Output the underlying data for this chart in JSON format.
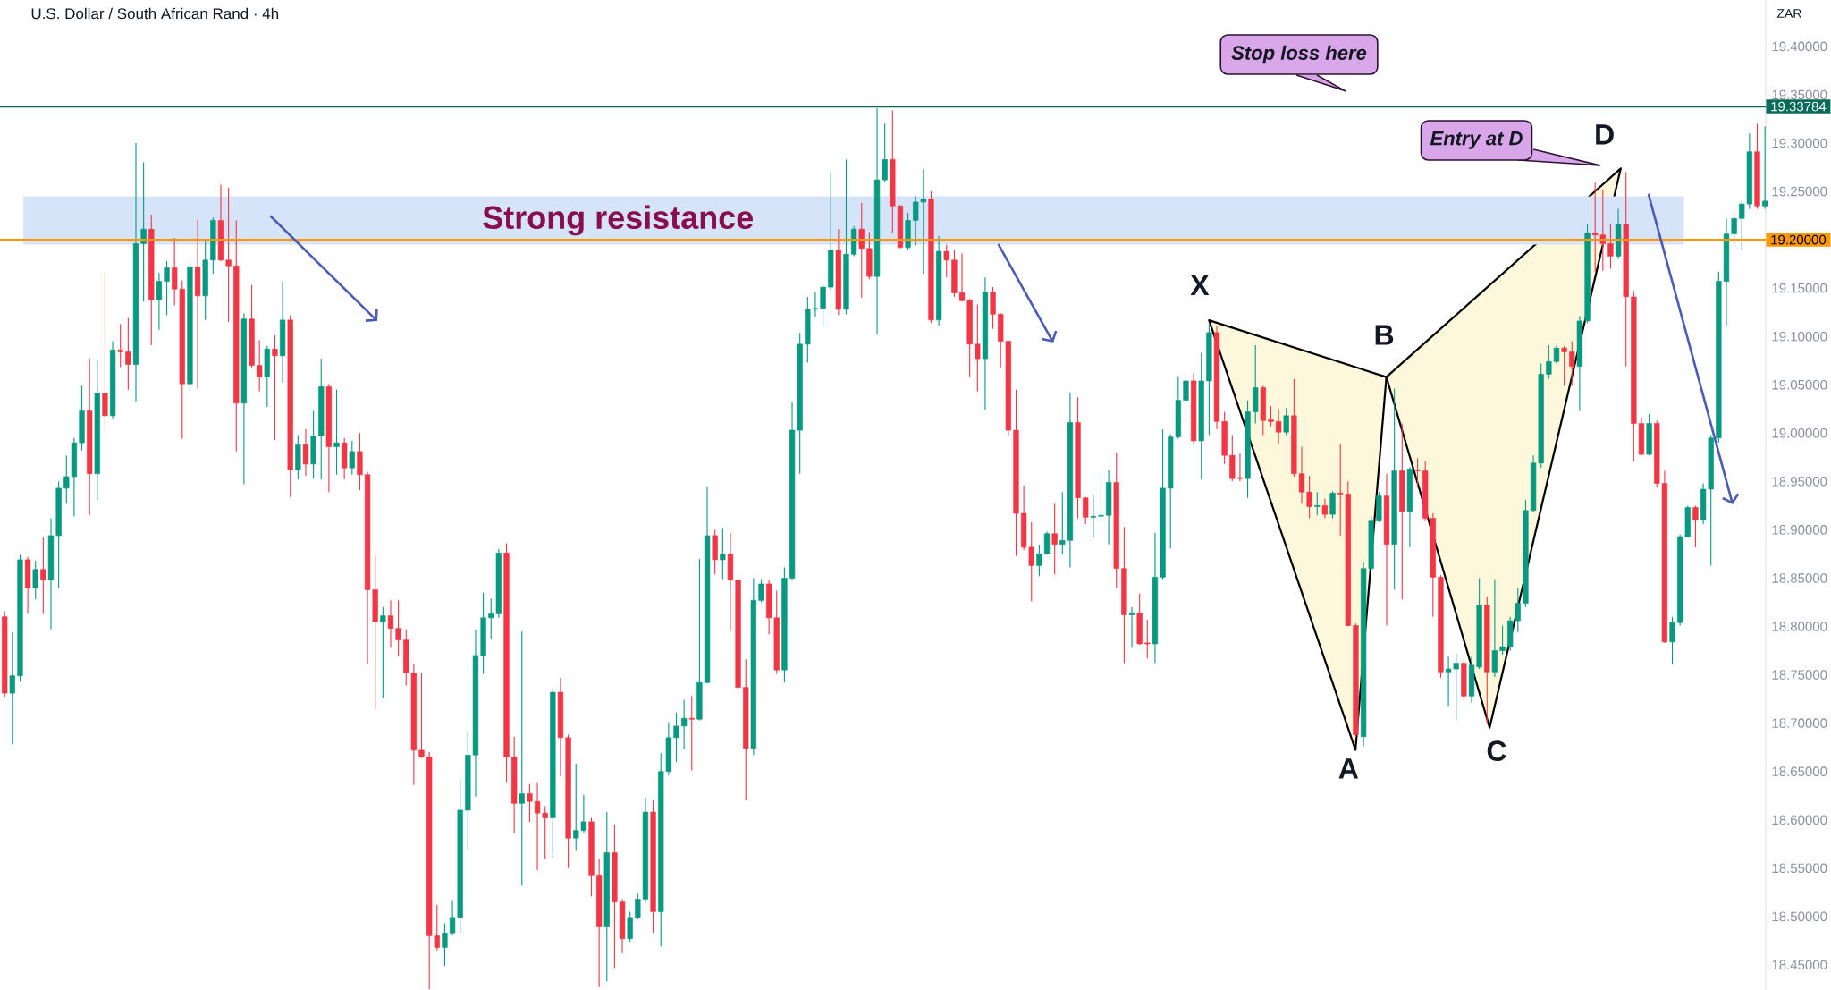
{
  "chart_data": {
    "type": "candlestick",
    "title": "U.S. Dollar / South African Rand · 4h",
    "ylabel": "ZAR",
    "categories": [
      null,
      null,
      null,
      null,
      null,
      null,
      null,
      null,
      null,
      null,
      null,
      null,
      null,
      null,
      null,
      null,
      null,
      null,
      null,
      null,
      null,
      null,
      null,
      null,
      null,
      null,
      null,
      null,
      null,
      null,
      null,
      null,
      null,
      null,
      null,
      null,
      null,
      null,
      null,
      null,
      null,
      null,
      null,
      null,
      null,
      null,
      null,
      null,
      null,
      null,
      null,
      null,
      null,
      null,
      null,
      null,
      null,
      null,
      null,
      null,
      null,
      null,
      null,
      null,
      null,
      null,
      null,
      null,
      null,
      null,
      null,
      null,
      null,
      null,
      null,
      null,
      null,
      null,
      null,
      null,
      null,
      null,
      null,
      null,
      null,
      null,
      null,
      null,
      null,
      null,
      null,
      null,
      null,
      null,
      null,
      null,
      null,
      null,
      null,
      null,
      null,
      null,
      null,
      null,
      null,
      null,
      null,
      null,
      null,
      null,
      null,
      null,
      null,
      null,
      null,
      null,
      null,
      null,
      null,
      null,
      null,
      null,
      null,
      null,
      null,
      null,
      null,
      null,
      null,
      null,
      null,
      null,
      null,
      null,
      null,
      null,
      null,
      null,
      null,
      null,
      null,
      null,
      null,
      null,
      null,
      null,
      null,
      null,
      null,
      null,
      null,
      null,
      null,
      null,
      null,
      null,
      null,
      null,
      null,
      null,
      null,
      null,
      null,
      null,
      null,
      null,
      null,
      null,
      null,
      null,
      null,
      null,
      null,
      null,
      null,
      null,
      null,
      null,
      null,
      null,
      null,
      null,
      null,
      null,
      null,
      null,
      null,
      null,
      null,
      null,
      null,
      null,
      null,
      null,
      null,
      null,
      null,
      null,
      null,
      null,
      null,
      null,
      null,
      null,
      null,
      null,
      null,
      null,
      null,
      null,
      null,
      null,
      null,
      null,
      null,
      null,
      null,
      null,
      null,
      null,
      null,
      null,
      null,
      null,
      null,
      null,
      null,
      null,
      null
    ],
    "ohlc": [
      [
        18.81,
        18.816,
        18.727,
        18.731
      ],
      [
        18.731,
        18.794,
        18.678,
        18.749
      ],
      [
        18.749,
        18.874,
        18.743,
        18.869
      ],
      [
        18.869,
        18.872,
        18.813,
        18.84
      ],
      [
        18.84,
        18.868,
        18.828,
        18.859
      ],
      [
        18.859,
        18.892,
        18.813,
        18.848
      ],
      [
        18.848,
        18.912,
        18.797,
        18.894
      ],
      [
        18.894,
        18.95,
        18.84,
        18.943
      ],
      [
        18.943,
        18.977,
        18.927,
        18.955
      ],
      [
        18.955,
        18.995,
        18.914,
        18.99
      ],
      [
        18.99,
        19.049,
        18.982,
        19.023
      ],
      [
        19.023,
        19.077,
        18.915,
        18.958
      ],
      [
        18.958,
        19.076,
        18.931,
        19.041
      ],
      [
        19.041,
        19.166,
        19.003,
        19.018
      ],
      [
        19.018,
        19.095,
        19.015,
        19.086
      ],
      [
        19.086,
        19.113,
        19.068,
        19.084
      ],
      [
        19.084,
        19.119,
        19.045,
        19.071
      ],
      [
        19.071,
        19.3,
        19.033,
        19.196
      ],
      [
        19.196,
        19.28,
        19.136,
        19.211
      ],
      [
        19.211,
        19.226,
        19.091,
        19.138
      ],
      [
        19.138,
        19.166,
        19.107,
        19.157
      ],
      [
        19.157,
        19.178,
        19.122,
        19.171
      ],
      [
        19.171,
        19.202,
        19.132,
        19.149
      ],
      [
        19.149,
        19.158,
        18.994,
        19.051
      ],
      [
        19.051,
        19.178,
        19.043,
        19.172
      ],
      [
        19.172,
        19.221,
        19.046,
        19.142
      ],
      [
        19.142,
        19.2,
        19.117,
        19.179
      ],
      [
        19.179,
        19.223,
        19.165,
        19.22
      ],
      [
        19.22,
        19.257,
        19.178,
        19.179
      ],
      [
        19.179,
        19.254,
        19.115,
        19.173
      ],
      [
        19.173,
        19.22,
        18.981,
        19.031
      ],
      [
        19.031,
        19.124,
        18.947,
        19.118
      ],
      [
        19.118,
        19.153,
        19.068,
        19.07
      ],
      [
        19.07,
        19.096,
        19.043,
        19.058
      ],
      [
        19.058,
        19.09,
        19.027,
        19.087
      ],
      [
        19.087,
        19.101,
        18.993,
        19.08
      ],
      [
        19.08,
        19.157,
        19.052,
        19.117
      ],
      [
        19.117,
        19.122,
        18.934,
        18.962
      ],
      [
        18.962,
        18.998,
        18.952,
        18.988
      ],
      [
        18.988,
        19.004,
        18.956,
        18.968
      ],
      [
        18.968,
        19.023,
        18.953,
        18.997
      ],
      [
        18.997,
        19.077,
        18.952,
        19.048
      ],
      [
        19.048,
        19.051,
        18.939,
        18.986
      ],
      [
        18.986,
        19.045,
        18.957,
        18.99
      ],
      [
        18.99,
        18.995,
        18.952,
        18.964
      ],
      [
        18.964,
        18.992,
        18.957,
        18.981
      ],
      [
        18.981,
        19.0,
        18.941,
        18.957
      ],
      [
        18.957,
        18.96,
        18.761,
        18.838
      ],
      [
        18.838,
        18.873,
        18.715,
        18.805
      ],
      [
        18.805,
        18.82,
        18.726,
        18.811
      ],
      [
        18.811,
        18.827,
        18.778,
        18.798
      ],
      [
        18.798,
        18.827,
        18.769,
        18.786
      ],
      [
        18.786,
        18.797,
        18.739,
        18.752
      ],
      [
        18.752,
        18.761,
        18.636,
        18.672
      ],
      [
        18.672,
        18.752,
        18.664,
        18.665
      ],
      [
        18.665,
        18.67,
        18.425,
        18.48
      ],
      [
        18.48,
        18.512,
        18.465,
        18.468
      ],
      [
        18.468,
        18.493,
        18.449,
        18.483
      ],
      [
        18.483,
        18.517,
        18.481,
        18.499
      ],
      [
        18.499,
        18.642,
        18.483,
        18.61
      ],
      [
        18.61,
        18.692,
        18.569,
        18.667
      ],
      [
        18.667,
        18.797,
        18.624,
        18.77
      ],
      [
        18.77,
        18.835,
        18.751,
        18.809
      ],
      [
        18.809,
        18.829,
        18.787,
        18.813
      ],
      [
        18.813,
        18.88,
        18.809,
        18.876
      ],
      [
        18.876,
        18.886,
        18.639,
        18.665
      ],
      [
        18.665,
        18.686,
        18.586,
        18.617
      ],
      [
        18.617,
        18.795,
        18.532,
        18.627
      ],
      [
        18.627,
        18.637,
        18.598,
        18.619
      ],
      [
        18.619,
        18.639,
        18.548,
        18.607
      ],
      [
        18.607,
        18.614,
        18.56,
        18.602
      ],
      [
        18.602,
        18.736,
        18.561,
        18.732
      ],
      [
        18.732,
        18.747,
        18.645,
        18.685
      ],
      [
        18.685,
        18.688,
        18.55,
        18.581
      ],
      [
        18.581,
        18.658,
        18.568,
        18.589
      ],
      [
        18.589,
        18.626,
        18.587,
        18.598
      ],
      [
        18.598,
        18.602,
        18.521,
        18.543
      ],
      [
        18.543,
        18.56,
        18.427,
        18.49
      ],
      [
        18.49,
        18.608,
        18.433,
        18.566
      ],
      [
        18.566,
        18.595,
        18.447,
        18.515
      ],
      [
        18.515,
        18.518,
        18.462,
        18.477
      ],
      [
        18.477,
        18.505,
        18.474,
        18.499
      ],
      [
        18.499,
        18.524,
        18.497,
        18.518
      ],
      [
        18.518,
        18.623,
        18.515,
        18.608
      ],
      [
        18.608,
        18.621,
        18.483,
        18.505
      ],
      [
        18.505,
        18.669,
        18.469,
        18.65
      ],
      [
        18.65,
        18.701,
        18.646,
        18.685
      ],
      [
        18.685,
        18.711,
        18.66,
        18.697
      ],
      [
        18.697,
        18.724,
        18.673,
        18.705
      ],
      [
        18.705,
        18.728,
        18.651,
        18.704
      ],
      [
        18.704,
        18.87,
        18.703,
        18.742
      ],
      [
        18.742,
        18.945,
        18.741,
        18.894
      ],
      [
        18.894,
        18.9,
        18.854,
        18.869
      ],
      [
        18.869,
        18.902,
        18.849,
        18.875
      ],
      [
        18.875,
        18.897,
        18.795,
        18.848
      ],
      [
        18.848,
        18.85,
        18.735,
        18.737
      ],
      [
        18.737,
        18.766,
        18.62,
        18.674
      ],
      [
        18.674,
        18.85,
        18.667,
        18.827
      ],
      [
        18.827,
        18.849,
        18.825,
        18.844
      ],
      [
        18.844,
        18.848,
        18.792,
        18.809
      ],
      [
        18.809,
        18.837,
        18.751,
        18.755
      ],
      [
        18.755,
        18.861,
        18.742,
        18.85
      ],
      [
        18.85,
        19.032,
        18.848,
        19.003
      ],
      [
        19.003,
        19.104,
        18.958,
        19.092
      ],
      [
        19.092,
        19.141,
        19.073,
        19.128
      ],
      [
        19.128,
        19.146,
        19.12,
        19.129
      ],
      [
        19.129,
        19.156,
        19.111,
        19.151
      ],
      [
        19.151,
        19.27,
        19.148,
        19.189
      ],
      [
        19.189,
        19.211,
        19.122,
        19.128
      ],
      [
        19.128,
        19.283,
        19.123,
        19.185
      ],
      [
        19.185,
        19.214,
        19.183,
        19.211
      ],
      [
        19.211,
        19.238,
        19.14,
        19.191
      ],
      [
        19.191,
        19.208,
        19.159,
        19.162
      ],
      [
        19.162,
        19.336,
        19.102,
        19.262
      ],
      [
        19.262,
        19.32,
        19.26,
        19.283
      ],
      [
        19.283,
        19.334,
        19.207,
        19.235
      ],
      [
        19.235,
        19.236,
        19.191,
        19.192
      ],
      [
        19.192,
        19.228,
        19.189,
        19.22
      ],
      [
        19.22,
        19.245,
        19.194,
        19.239
      ],
      [
        19.239,
        19.273,
        19.165,
        19.242
      ],
      [
        19.242,
        19.25,
        19.114,
        19.117
      ],
      [
        19.117,
        19.204,
        19.111,
        19.188
      ],
      [
        19.188,
        19.195,
        19.161,
        19.179
      ],
      [
        19.179,
        19.189,
        19.141,
        19.145
      ],
      [
        19.145,
        19.186,
        19.136,
        19.137
      ],
      [
        19.137,
        19.139,
        19.058,
        19.092
      ],
      [
        19.092,
        19.133,
        19.043,
        19.077
      ],
      [
        19.077,
        19.161,
        19.024,
        19.146
      ],
      [
        19.146,
        19.151,
        19.108,
        19.123
      ],
      [
        19.123,
        19.124,
        19.068,
        19.095
      ],
      [
        19.095,
        19.096,
        18.997,
        19.003
      ],
      [
        19.003,
        19.045,
        18.873,
        18.917
      ],
      [
        18.917,
        18.946,
        18.879,
        18.882
      ],
      [
        18.882,
        18.908,
        18.826,
        18.863
      ],
      [
        18.863,
        18.885,
        18.852,
        18.875
      ],
      [
        18.875,
        18.898,
        18.874,
        18.896
      ],
      [
        18.896,
        18.927,
        18.854,
        18.885
      ],
      [
        18.885,
        18.939,
        18.875,
        18.889
      ],
      [
        18.889,
        19.042,
        18.861,
        19.011
      ],
      [
        19.011,
        19.037,
        18.912,
        18.933
      ],
      [
        18.933,
        18.934,
        18.906,
        18.913
      ],
      [
        18.913,
        18.936,
        18.892,
        18.914
      ],
      [
        18.914,
        18.955,
        18.908,
        18.915
      ],
      [
        18.915,
        18.962,
        18.885,
        18.949
      ],
      [
        18.949,
        18.98,
        18.84,
        18.86
      ],
      [
        18.86,
        18.903,
        18.762,
        18.812
      ],
      [
        18.812,
        18.82,
        18.778,
        18.814
      ],
      [
        18.814,
        18.834,
        18.781,
        18.782
      ],
      [
        18.783,
        18.807,
        18.767,
        18.782
      ],
      [
        18.782,
        18.897,
        18.762,
        18.851
      ],
      [
        18.851,
        19.004,
        18.849,
        18.943
      ],
      [
        18.943,
        18.999,
        18.881,
        18.996
      ],
      [
        18.996,
        19.059,
        18.994,
        19.034
      ],
      [
        19.034,
        19.059,
        19.012,
        19.054
      ],
      [
        19.054,
        19.062,
        18.988,
        18.992
      ],
      [
        18.992,
        19.083,
        18.952,
        19.054
      ],
      [
        19.054,
        19.113,
        18.998,
        19.104
      ],
      [
        19.104,
        19.111,
        19.004,
        19.012
      ],
      [
        19.012,
        19.022,
        18.968,
        18.977
      ],
      [
        18.977,
        18.998,
        18.95,
        18.953
      ],
      [
        18.954,
        18.979,
        18.95,
        18.953
      ],
      [
        18.953,
        19.034,
        18.933,
        19.022
      ],
      [
        19.022,
        19.091,
        19.01,
        19.047
      ],
      [
        19.047,
        19.049,
        18.998,
        19.013
      ],
      [
        19.014,
        19.028,
        19.007,
        19.012
      ],
      [
        19.012,
        19.025,
        18.989,
        19.001
      ],
      [
        19.001,
        19.026,
        18.998,
        19.018
      ],
      [
        19.018,
        19.056,
        18.955,
        18.958
      ],
      [
        18.958,
        18.986,
        18.927,
        18.939
      ],
      [
        18.939,
        18.956,
        18.912,
        18.924
      ],
      [
        18.924,
        18.939,
        18.915,
        18.925
      ],
      [
        18.925,
        18.932,
        18.912,
        18.916
      ],
      [
        18.916,
        18.94,
        18.912,
        18.938
      ],
      [
        18.938,
        18.989,
        18.894,
        18.937
      ],
      [
        18.937,
        18.95,
        18.8,
        18.801
      ],
      [
        18.801,
        18.803,
        18.685,
        18.688
      ],
      [
        18.686,
        18.867,
        18.676,
        18.86
      ],
      [
        18.86,
        18.914,
        18.858,
        18.909
      ],
      [
        18.909,
        18.939,
        18.908,
        18.935
      ],
      [
        18.935,
        18.958,
        18.801,
        18.885
      ],
      [
        18.885,
        19.046,
        18.838,
        18.961
      ],
      [
        18.961,
        19.01,
        18.828,
        18.919
      ],
      [
        18.919,
        18.965,
        18.882,
        18.963
      ],
      [
        18.962,
        18.974,
        18.944,
        18.961
      ],
      [
        18.961,
        18.971,
        18.909,
        18.912
      ],
      [
        18.912,
        18.917,
        18.81,
        18.851
      ],
      [
        18.851,
        18.853,
        18.747,
        18.753
      ],
      [
        18.753,
        18.769,
        18.718,
        18.756
      ],
      [
        18.756,
        18.772,
        18.703,
        18.762
      ],
      [
        18.762,
        18.766,
        18.724,
        18.728
      ],
      [
        18.728,
        18.769,
        18.721,
        18.76
      ],
      [
        18.758,
        18.85,
        18.756,
        18.822
      ],
      [
        18.822,
        18.831,
        18.699,
        18.753
      ],
      [
        18.753,
        18.849,
        18.748,
        18.775
      ],
      [
        18.775,
        18.801,
        18.771,
        18.779
      ],
      [
        18.779,
        18.81,
        18.775,
        18.806
      ],
      [
        18.806,
        18.84,
        18.794,
        18.824
      ],
      [
        18.824,
        18.931,
        18.82,
        18.92
      ],
      [
        18.92,
        18.977,
        18.918,
        18.969
      ],
      [
        18.969,
        19.072,
        18.964,
        19.061
      ],
      [
        19.061,
        19.091,
        19.056,
        19.074
      ],
      [
        19.074,
        19.091,
        19.072,
        19.088
      ],
      [
        19.088,
        19.09,
        19.049,
        19.084
      ],
      [
        19.084,
        19.095,
        19.049,
        19.069
      ],
      [
        19.069,
        19.121,
        19.023,
        19.116
      ],
      [
        19.116,
        19.216,
        19.114,
        19.207
      ],
      [
        19.207,
        19.259,
        19.167,
        19.205
      ],
      [
        19.205,
        19.252,
        19.168,
        19.196
      ],
      [
        19.196,
        19.216,
        19.17,
        19.183
      ],
      [
        19.183,
        19.232,
        19.18,
        19.216
      ],
      [
        19.216,
        19.27,
        19.069,
        19.141
      ],
      [
        19.141,
        19.147,
        18.971,
        19.01
      ],
      [
        19.01,
        19.016,
        18.977,
        18.978
      ],
      [
        18.978,
        19.02,
        18.977,
        19.01
      ],
      [
        19.01,
        19.013,
        18.944,
        18.948
      ],
      [
        18.948,
        18.961,
        18.783,
        18.784
      ],
      [
        18.784,
        18.81,
        18.761,
        18.804
      ],
      [
        18.804,
        18.895,
        18.801,
        18.893
      ],
      [
        18.893,
        18.925,
        18.892,
        18.923
      ],
      [
        18.923,
        18.925,
        18.882,
        18.91
      ],
      [
        18.91,
        18.948,
        18.906,
        18.942
      ],
      [
        18.942,
        18.998,
        18.863,
        18.995
      ],
      [
        18.995,
        19.167,
        18.99,
        19.157
      ],
      [
        19.157,
        19.222,
        19.111,
        19.206
      ],
      [
        19.206,
        19.229,
        19.193,
        19.222
      ],
      [
        19.222,
        19.24,
        19.19,
        19.237
      ],
      [
        19.237,
        19.31,
        19.232,
        19.291
      ],
      [
        19.291,
        19.32,
        19.232,
        19.235
      ],
      [
        19.235,
        19.317,
        19.232,
        19.24
      ]
    ],
    "colors": [
      "#f23645",
      "#089981",
      "#089981",
      "#f23645",
      "#089981",
      "#f23645",
      "#089981",
      "#089981",
      "#089981",
      "#089981",
      "#089981",
      "#f23645",
      "#089981",
      "#f23645",
      "#089981",
      "#f23645",
      "#f23645",
      "#089981",
      "#089981",
      "#f23645",
      "#089981",
      "#089981",
      "#f23645",
      "#f23645",
      "#089981",
      "#f23645",
      "#089981",
      "#089981",
      "#f23645",
      "#f23645",
      "#f23645",
      "#089981",
      "#f23645",
      "#f23645",
      "#089981",
      "#f23645",
      "#089981",
      "#f23645",
      "#089981",
      "#f23645",
      "#089981",
      "#089981",
      "#f23645",
      "#089981",
      "#f23645",
      "#089981",
      "#f23645",
      "#f23645",
      "#f23645",
      "#089981",
      "#f23645",
      "#f23645",
      "#f23645",
      "#f23645",
      "#f23645",
      "#f23645",
      "#f23645",
      "#089981",
      "#089981",
      "#089981",
      "#089981",
      "#089981",
      "#089981",
      "#089981",
      "#089981",
      "#f23645",
      "#f23645",
      "#089981",
      "#f23645",
      "#f23645",
      "#f23645",
      "#089981",
      "#f23645",
      "#f23645",
      "#089981",
      "#089981",
      "#f23645",
      "#f23645",
      "#089981",
      "#f23645",
      "#f23645",
      "#089981",
      "#089981",
      "#089981",
      "#f23645",
      "#089981",
      "#089981",
      "#089981",
      "#089981",
      "#f23645",
      "#089981",
      "#089981",
      "#f23645",
      "#089981",
      "#f23645",
      "#f23645",
      "#f23645",
      "#089981",
      "#089981",
      "#f23645",
      "#f23645",
      "#089981",
      "#089981",
      "#089981",
      "#089981",
      "#089981",
      "#089981",
      "#089981",
      "#f23645",
      "#089981",
      "#089981",
      "#f23645",
      "#f23645",
      "#089981",
      "#089981",
      "#f23645",
      "#f23645",
      "#089981",
      "#089981",
      "#089981",
      "#f23645",
      "#089981",
      "#f23645",
      "#f23645",
      "#f23645",
      "#f23645",
      "#f23645",
      "#089981",
      "#f23645",
      "#f23645",
      "#f23645",
      "#f23645",
      "#f23645",
      "#f23645",
      "#089981",
      "#089981",
      "#f23645",
      "#089981",
      "#089981",
      "#f23645",
      "#f23645",
      "#089981",
      "#089981",
      "#089981",
      "#f23645",
      "#f23645",
      "#089981",
      "#f23645",
      "#f23645",
      "#089981",
      "#089981",
      "#089981",
      "#089981",
      "#089981",
      "#f23645",
      "#089981",
      "#089981",
      "#f23645",
      "#f23645",
      "#f23645",
      "#f23645",
      "#089981",
      "#089981",
      "#f23645",
      "#f23645",
      "#f23645",
      "#089981",
      "#f23645",
      "#f23645",
      "#f23645",
      "#089981",
      "#f23645",
      "#089981",
      "#f23645",
      "#f23645",
      "#f23645",
      "#089981",
      "#089981",
      "#089981",
      "#f23645",
      "#089981",
      "#f23645",
      "#089981",
      "#f23645",
      "#f23645",
      "#f23645",
      "#f23645",
      "#089981",
      "#089981",
      "#f23645",
      "#089981",
      "#089981",
      "#f23645",
      "#089981",
      "#089981",
      "#089981",
      "#089981",
      "#089981",
      "#089981",
      "#089981",
      "#089981",
      "#089981",
      "#f23645",
      "#f23645",
      "#089981",
      "#089981",
      "#f23645",
      "#f23645",
      "#f23645",
      "#089981",
      "#f23645",
      "#f23645",
      "#f23645",
      "#089981",
      "#f23645",
      "#f23645",
      "#089981",
      "#089981",
      "#089981",
      "#f23645",
      "#089981",
      "#089981",
      "#089981",
      "#089981",
      "#089981",
      "#089981",
      "#089981",
      "#f23645",
      "#089981"
    ],
    "ylim": [
      18.424,
      19.448
    ],
    "yticks": [
      {
        "value": 18.45,
        "label": "18.45000"
      },
      {
        "value": 18.5,
        "label": "18.50000"
      },
      {
        "value": 18.55,
        "label": "18.55000"
      },
      {
        "value": 18.6,
        "label": "18.60000"
      },
      {
        "value": 18.65,
        "label": "18.65000"
      },
      {
        "value": 18.7,
        "label": "18.70000"
      },
      {
        "value": 18.75,
        "label": "18.75000"
      },
      {
        "value": 18.8,
        "label": "18.80000"
      },
      {
        "value": 18.85,
        "label": "18.85000"
      },
      {
        "value": 18.9,
        "label": "18.90000"
      },
      {
        "value": 18.95,
        "label": "18.95000"
      },
      {
        "value": 19.0,
        "label": "19.00000"
      },
      {
        "value": 19.05,
        "label": "19.05000"
      },
      {
        "value": 19.1,
        "label": "19.10000"
      },
      {
        "value": 19.15,
        "label": "19.15000"
      },
      {
        "value": 19.25,
        "label": "19.25000"
      },
      {
        "value": 19.3,
        "label": "19.30000"
      },
      {
        "value": 19.35,
        "label": "19.35000"
      },
      {
        "value": 19.4,
        "label": "19.40000"
      }
    ],
    "ref_lines": [
      {
        "axis": "y",
        "value": 19.33784,
        "label": "19.33784",
        "color": "#066b58"
      },
      {
        "axis": "y",
        "value": 19.2,
        "label": "19.20000",
        "color": "#ff9800"
      }
    ],
    "bands": [
      {
        "axis": "y",
        "from": 19.195,
        "to": 19.245,
        "label": "Strong resistance",
        "color": "#d6e4fa"
      }
    ],
    "annotations": [
      "X",
      "A",
      "B",
      "C",
      "D",
      "Stop loss here",
      "Entry at D"
    ]
  }
}
